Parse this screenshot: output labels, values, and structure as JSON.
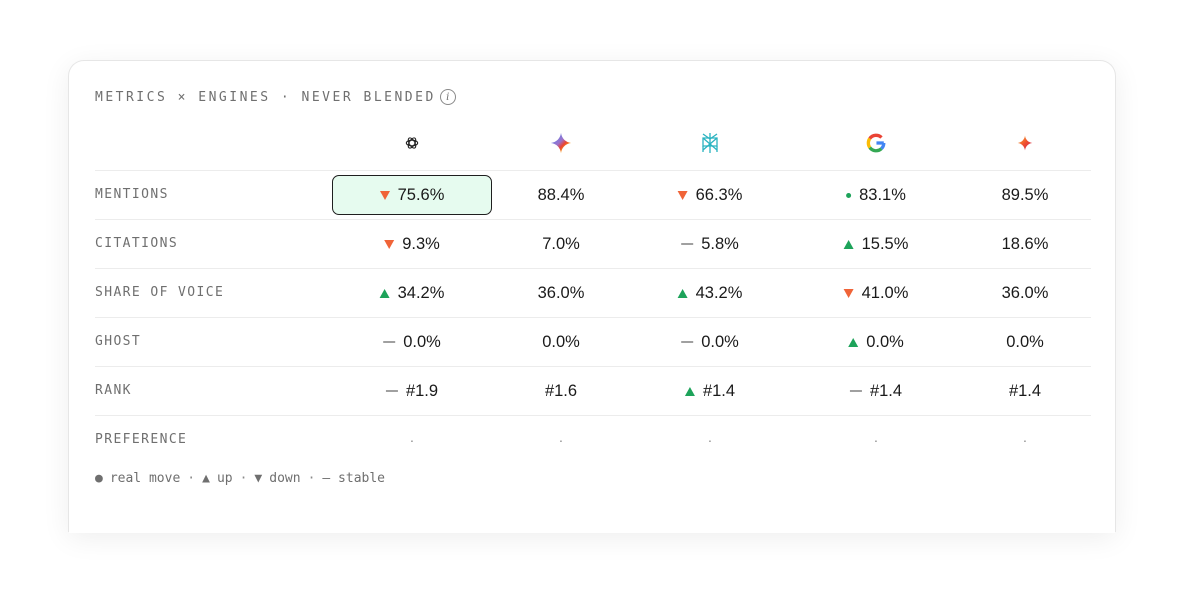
{
  "title": "METRICS × ENGINES · NEVER BLENDED",
  "info_glyph": "i",
  "engines": [
    {
      "name": "openai-icon"
    },
    {
      "name": "gemini-icon"
    },
    {
      "name": "perplexity-icon"
    },
    {
      "name": "google-icon"
    },
    {
      "name": "spark-icon"
    }
  ],
  "rows": [
    {
      "label": "MENTIONS",
      "cells": [
        {
          "value": "75.6%",
          "trend": "down",
          "selected": true
        },
        {
          "value": "88.4%",
          "trend": "none"
        },
        {
          "value": "66.3%",
          "trend": "down"
        },
        {
          "value": "83.1%",
          "trend": "real"
        },
        {
          "value": "89.5%",
          "trend": "none"
        }
      ]
    },
    {
      "label": "CITATIONS",
      "cells": [
        {
          "value": "9.3%",
          "trend": "down"
        },
        {
          "value": "7.0%",
          "trend": "none"
        },
        {
          "value": "5.8%",
          "trend": "stable"
        },
        {
          "value": "15.5%",
          "trend": "up"
        },
        {
          "value": "18.6%",
          "trend": "none"
        }
      ]
    },
    {
      "label": "SHARE OF VOICE",
      "cells": [
        {
          "value": "34.2%",
          "trend": "up"
        },
        {
          "value": "36.0%",
          "trend": "none"
        },
        {
          "value": "43.2%",
          "trend": "up"
        },
        {
          "value": "41.0%",
          "trend": "down"
        },
        {
          "value": "36.0%",
          "trend": "none"
        }
      ]
    },
    {
      "label": "GHOST",
      "cells": [
        {
          "value": "0.0%",
          "trend": "stable"
        },
        {
          "value": "0.0%",
          "trend": "none"
        },
        {
          "value": "0.0%",
          "trend": "stable"
        },
        {
          "value": "0.0%",
          "trend": "up"
        },
        {
          "value": "0.0%",
          "trend": "none"
        }
      ]
    },
    {
      "label": "RANK",
      "cells": [
        {
          "value": "#1.9",
          "trend": "stable"
        },
        {
          "value": "#1.6",
          "trend": "none"
        },
        {
          "value": "#1.4",
          "trend": "up"
        },
        {
          "value": "#1.4",
          "trend": "stable"
        },
        {
          "value": "#1.4",
          "trend": "none"
        }
      ]
    },
    {
      "label": "PREFERENCE",
      "cells": [
        {
          "value": "·",
          "trend": "none"
        },
        {
          "value": "·",
          "trend": "none"
        },
        {
          "value": "·",
          "trend": "none"
        },
        {
          "value": "·",
          "trend": "none"
        },
        {
          "value": "·",
          "trend": "none"
        }
      ]
    }
  ],
  "legend": {
    "real_glyph": "●",
    "real_label": "real move",
    "up_glyph": "▲",
    "up_label": "up",
    "down_glyph": "▼",
    "down_label": "down",
    "stable_label": "— stable",
    "separator": "·"
  },
  "colors": {
    "up": "#1da35a",
    "down": "#f06438",
    "stable": "#a0a0a0",
    "selected_bg": "#e6fbef"
  }
}
